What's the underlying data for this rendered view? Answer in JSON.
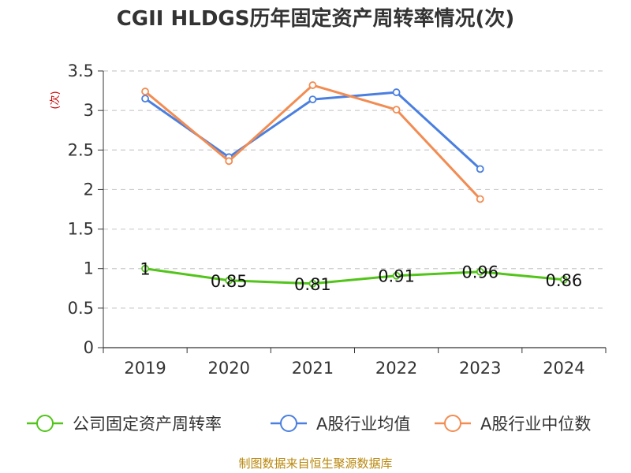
{
  "chart_data": {
    "type": "line",
    "title": "CGII HLDGS历年固定资产周转率情况(次)",
    "ylabel": "(次)",
    "xlabel": "",
    "categories": [
      "2019",
      "2020",
      "2021",
      "2022",
      "2023",
      "2024"
    ],
    "ylim": [
      0,
      3.5
    ],
    "yticks": [
      "0",
      "0.5",
      "1",
      "1.5",
      "2",
      "2.5",
      "3",
      "3.5"
    ],
    "grid": true,
    "legend_position": "bottom",
    "series": [
      {
        "name": "公司固定资产周转率",
        "color": "#52c41a",
        "values": [
          1,
          0.85,
          0.81,
          0.91,
          0.96,
          0.86
        ],
        "labels": [
          "1",
          "0.85",
          "0.81",
          "0.91",
          "0.96",
          "0.86"
        ],
        "show_labels": true
      },
      {
        "name": "A股行业均值",
        "color": "#4a7fe0",
        "values": [
          3.15,
          2.41,
          3.14,
          3.23,
          2.26,
          null
        ],
        "show_labels": false
      },
      {
        "name": "A股行业中位数",
        "color": "#f28c52",
        "values": [
          3.24,
          2.36,
          3.32,
          3.01,
          1.88,
          null
        ],
        "show_labels": false
      }
    ]
  },
  "footer": "制图数据来自恒生聚源数据库"
}
